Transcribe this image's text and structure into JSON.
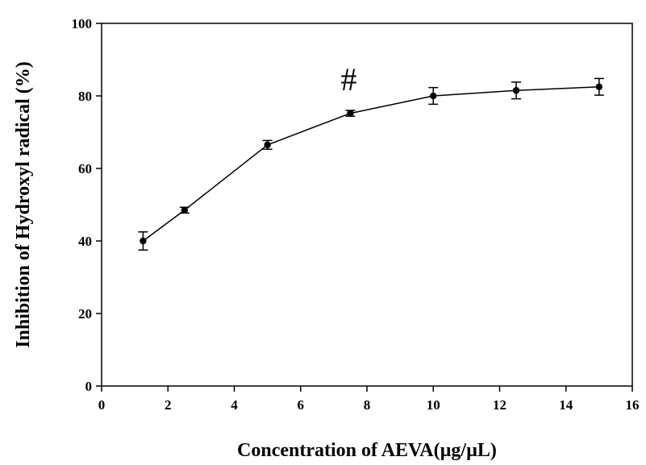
{
  "chart_data": {
    "type": "line",
    "title": "",
    "xlabel": "Concentration of AEVA(µg/µL)",
    "ylabel": "Inhibition of Hydroxyl radical (%)",
    "xlim": [
      0,
      16
    ],
    "ylim": [
      0,
      100
    ],
    "xticks": [
      0,
      2,
      4,
      6,
      8,
      10,
      12,
      14,
      16
    ],
    "yticks": [
      0,
      20,
      40,
      60,
      80,
      100
    ],
    "grid": false,
    "legend": "none",
    "series": [
      {
        "x": [
          1.25,
          2.5,
          5,
          7.5,
          10,
          12.5,
          15
        ],
        "y": [
          40.0,
          48.5,
          66.5,
          75.2,
          80.0,
          81.5,
          82.5
        ],
        "error": [
          2.5,
          0.8,
          1.2,
          0.8,
          2.3,
          2.3,
          2.3
        ]
      }
    ],
    "annotations": [
      {
        "text": "#",
        "x": 7.5,
        "y": 82.5
      }
    ],
    "colors": {
      "line": "#000000",
      "marker": "#000000"
    }
  }
}
